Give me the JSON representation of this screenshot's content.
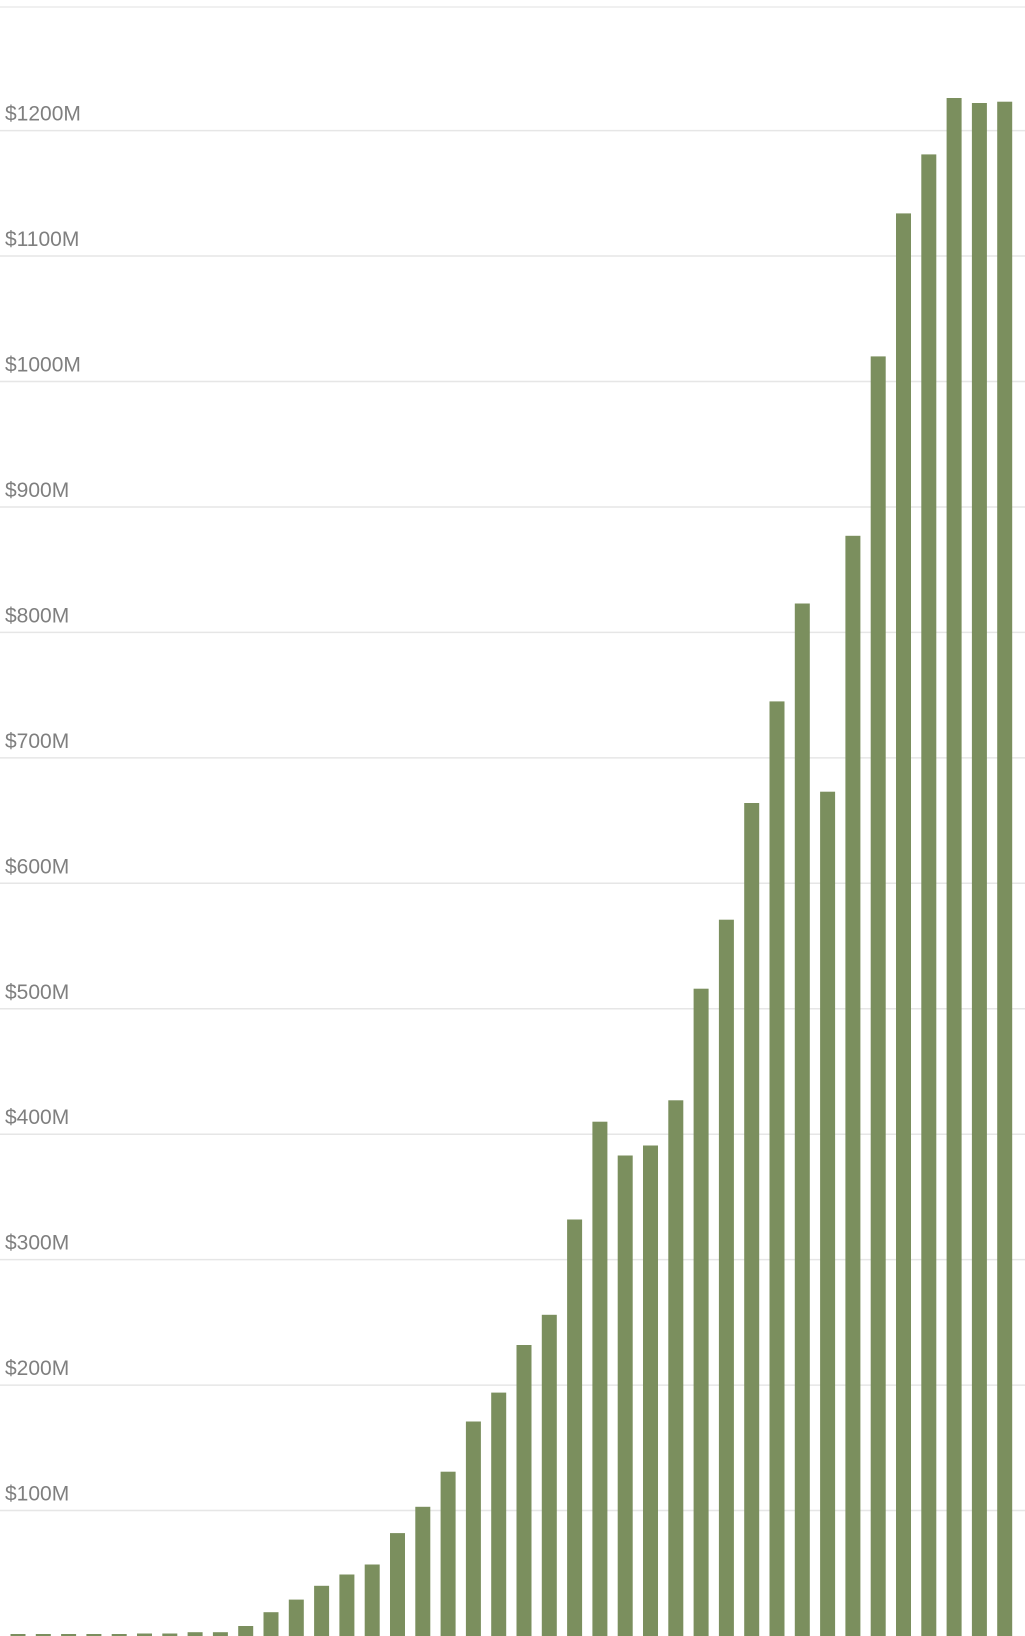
{
  "chart_data": {
    "type": "bar",
    "title": "",
    "xlabel": "",
    "ylabel": "",
    "grid": true,
    "legend": "none",
    "ylim": [
      0,
      1300
    ],
    "colors": {
      "bar": "#7b8f5e",
      "grid": "#e6e6e6",
      "tick_label": "#7f7f7f"
    },
    "y_ticks": [
      {
        "value": 100,
        "label": "$100M"
      },
      {
        "value": 200,
        "label": "$200M"
      },
      {
        "value": 300,
        "label": "$300M"
      },
      {
        "value": 400,
        "label": "$400M"
      },
      {
        "value": 500,
        "label": "$500M"
      },
      {
        "value": 600,
        "label": "$600M"
      },
      {
        "value": 700,
        "label": "$700M"
      },
      {
        "value": 800,
        "label": "$800M"
      },
      {
        "value": 900,
        "label": "$900M"
      },
      {
        "value": 1000,
        "label": "$1000M"
      },
      {
        "value": 1100,
        "label": "$1100M"
      },
      {
        "value": 1200,
        "label": "$1200M"
      }
    ],
    "values": [
      1,
      1,
      1,
      1,
      1,
      2,
      2,
      3,
      3,
      8,
      19,
      29,
      40,
      49,
      57,
      82,
      103,
      131,
      171,
      194,
      232,
      256,
      332,
      410,
      383,
      391,
      427,
      516,
      571,
      664,
      745,
      823,
      673,
      877,
      1020,
      1134,
      1181,
      1226,
      1222,
      1223
    ]
  }
}
